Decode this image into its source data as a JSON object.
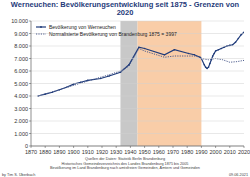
{
  "chart_data": {
    "type": "line",
    "title": "Werneuchen: Bevölkerungsentwicklung seit 1875 - Grenzen von 2020",
    "xlim": [
      1870,
      2020
    ],
    "xticks": [
      1870,
      1880,
      1890,
      1900,
      1910,
      1920,
      1930,
      1940,
      1950,
      1960,
      1970,
      1980,
      1990,
      2000,
      2010,
      2020
    ],
    "ylim": [
      0,
      10000
    ],
    "yticks": [
      0,
      {
        "value": 1000,
        "label": "1.000"
      },
      {
        "value": 2000,
        "label": "2.000"
      },
      {
        "value": 3000,
        "label": "3.000"
      },
      {
        "value": 4000,
        "label": "4.000"
      },
      {
        "value": 5000,
        "label": "5.000"
      },
      {
        "value": 6000,
        "label": "6.000"
      },
      {
        "value": 7000,
        "label": "7.000"
      },
      {
        "value": 8000,
        "label": "8.000"
      },
      {
        "value": 9000,
        "label": "9.000"
      },
      {
        "value": 10000,
        "label": "10.000"
      }
    ],
    "grid": true,
    "legend": "upper left",
    "shaded_ranges": [
      {
        "start": 1933,
        "end": 1945,
        "color": "#c8c8c8"
      },
      {
        "start": 1945,
        "end": 1990,
        "color": "#f9cda8"
      }
    ],
    "series": [
      {
        "name": "Bevölkerung von Werneuchen",
        "color": "#1f3b7a",
        "line_style": "solid",
        "marker": "circle",
        "x": [
          1875,
          1880,
          1885,
          1890,
          1895,
          1900,
          1905,
          1910,
          1919,
          1925,
          1933,
          1939,
          1946,
          1950,
          1964,
          1971,
          1981,
          1985,
          1989,
          1990,
          1992,
          1993,
          1994,
          1995,
          1996,
          1997,
          1998,
          1999,
          2000,
          2002,
          2004,
          2006,
          2008,
          2010,
          2012,
          2014,
          2016,
          2018,
          2020
        ],
        "values": [
          4000,
          4150,
          4300,
          4500,
          4700,
          4950,
          5100,
          5250,
          5400,
          5600,
          5900,
          6500,
          7900,
          7800,
          7300,
          7700,
          7400,
          7300,
          7100,
          7000,
          6500,
          6300,
          6200,
          6300,
          6600,
          6900,
          7200,
          7400,
          7600,
          7700,
          7800,
          7900,
          8000,
          8050,
          8100,
          8300,
          8600,
          8900,
          9100
        ]
      },
      {
        "name": "Normalisierte Bevölkerung von Brandenburg 1875 = 3997",
        "color": "#4a5a8c",
        "line_style": "dotted",
        "marker": "none",
        "x": [
          1875,
          1890,
          1910,
          1925,
          1933,
          1939,
          1946,
          1950,
          1964,
          1971,
          1981,
          1985,
          1989,
          1990,
          1995,
          2000,
          2005,
          2010,
          2015,
          2020
        ],
        "values": [
          4000,
          4500,
          5200,
          5700,
          6000,
          6400,
          7800,
          7600,
          7100,
          7200,
          7200,
          7200,
          7100,
          7000,
          6900,
          7000,
          6900,
          6700,
          6750,
          6850
        ]
      }
    ],
    "source": [
      "Quellen der Daten: Statistik Berlin Brandenburg",
      "Historisches Gemeindeverzeichnis des Landes Brandenburg 1875 bis 2005",
      "Bevölkerung im Land Brandenburg nach amtsfreien Gemeinden, Ämtern und Gemeinden"
    ],
    "author": "by Tim S. Überbach",
    "date": "09.06.2021"
  }
}
